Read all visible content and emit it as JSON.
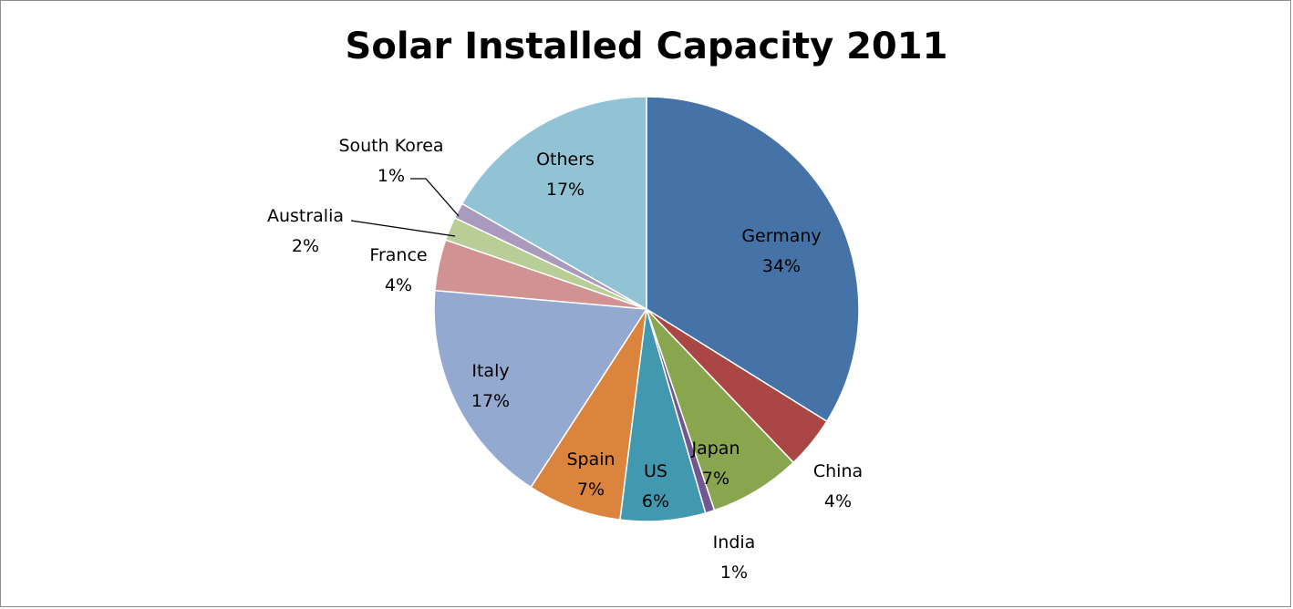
{
  "chart_data": {
    "type": "pie",
    "title": "Solar Installed Capacity 2011",
    "slices": [
      {
        "label": "Germany",
        "value": 34,
        "value_label": "34%",
        "color": "#4572a7"
      },
      {
        "label": "China",
        "value": 4,
        "value_label": "4%",
        "color": "#aa4643"
      },
      {
        "label": "Japan",
        "value": 7,
        "value_label": "7%",
        "color": "#89a54e"
      },
      {
        "label": "India",
        "value": 0.7,
        "value_label": "1%",
        "color": "#71588f"
      },
      {
        "label": "US",
        "value": 6.5,
        "value_label": "6%",
        "color": "#4198af"
      },
      {
        "label": "Spain",
        "value": 7.2,
        "value_label": "7%",
        "color": "#db843d"
      },
      {
        "label": "Italy",
        "value": 17.3,
        "value_label": "17%",
        "color": "#93a9cf"
      },
      {
        "label": "France",
        "value": 3.9,
        "value_label": "4%",
        "color": "#d19392"
      },
      {
        "label": "Australia",
        "value": 1.8,
        "value_label": "2%",
        "color": "#b9cd96"
      },
      {
        "label": "South Korea",
        "value": 1.2,
        "value_label": "1%",
        "color": "#a99bbd"
      },
      {
        "label": "Others",
        "value": 16.8,
        "value_label": "17%",
        "color": "#92c3d4"
      }
    ],
    "legend": "none",
    "start_angle": "12 o'clock, clockwise"
  }
}
